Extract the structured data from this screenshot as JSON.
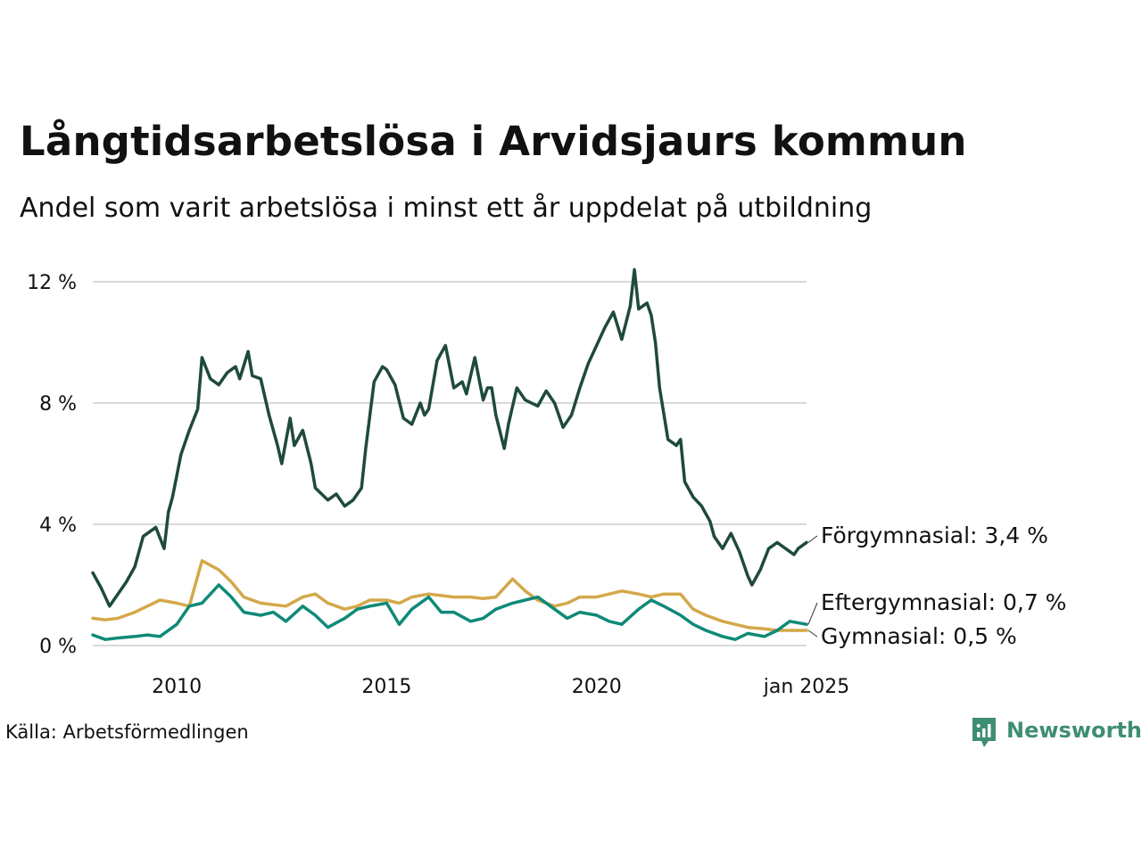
{
  "title": "Långtidsarbetslösa i Arvidsjaurs kommun",
  "subtitle": "Andel som varit arbetslösa i minst ett år uppdelat på utbildning",
  "source": "Källa: Arbetsförmedlingen",
  "brand": "Newsworthy",
  "colors": {
    "forgymnasial": "#1e4a3c",
    "eftergymnasial": "#0e8a78",
    "gymnasial": "#d4a84a",
    "grid": "#d9d9d9",
    "brand": "#3e8e73"
  },
  "chart_data": {
    "type": "line",
    "title": "Långtidsarbetslösa i Arvidsjaurs kommun",
    "ylabel": "",
    "xlabel": "",
    "ylim": [
      0,
      12.5
    ],
    "xlim": [
      2008.0,
      2025.0
    ],
    "y_ticks": [
      {
        "value": 0,
        "label": "0 %"
      },
      {
        "value": 4,
        "label": "4 %"
      },
      {
        "value": 8,
        "label": "8 %"
      },
      {
        "value": 12,
        "label": "12 %"
      }
    ],
    "x_ticks": [
      {
        "value": 2010,
        "label": "2010"
      },
      {
        "value": 2015,
        "label": "2015"
      },
      {
        "value": 2020,
        "label": "2020"
      },
      {
        "value": 2025,
        "label": "jan 2025"
      }
    ],
    "series": [
      {
        "name": "Förgymnasial",
        "end_label": "Förgymnasial: 3,4 %",
        "x": [
          2008.0,
          2008.2,
          2008.4,
          2008.6,
          2008.8,
          2009.0,
          2009.2,
          2009.5,
          2009.7,
          2009.8,
          2009.9,
          2010.1,
          2010.3,
          2010.5,
          2010.6,
          2010.8,
          2011.0,
          2011.2,
          2011.4,
          2011.5,
          2011.7,
          2011.8,
          2012.0,
          2012.2,
          2012.4,
          2012.5,
          2012.7,
          2012.8,
          2013.0,
          2013.2,
          2013.3,
          2013.6,
          2013.8,
          2014.0,
          2014.2,
          2014.4,
          2014.5,
          2014.7,
          2014.9,
          2015.0,
          2015.2,
          2015.4,
          2015.6,
          2015.8,
          2015.9,
          2016.0,
          2016.2,
          2016.4,
          2016.6,
          2016.8,
          2016.9,
          2017.1,
          2017.3,
          2017.4,
          2017.5,
          2017.6,
          2017.8,
          2017.9,
          2018.1,
          2018.3,
          2018.6,
          2018.8,
          2019.0,
          2019.2,
          2019.4,
          2019.6,
          2019.8,
          2020.0,
          2020.2,
          2020.4,
          2020.6,
          2020.8,
          2020.9,
          2021.0,
          2021.2,
          2021.3,
          2021.4,
          2021.5,
          2021.7,
          2021.9,
          2022.0,
          2022.1,
          2022.3,
          2022.5,
          2022.7,
          2022.8,
          2023.0,
          2023.2,
          2023.4,
          2023.6,
          2023.7,
          2023.9,
          2024.1,
          2024.3,
          2024.5,
          2024.7,
          2024.8,
          2025.0
        ],
        "values": [
          2.4,
          1.9,
          1.3,
          1.7,
          2.1,
          2.6,
          3.6,
          3.9,
          3.2,
          4.4,
          4.9,
          6.3,
          7.1,
          7.8,
          9.5,
          8.8,
          8.6,
          9.0,
          9.2,
          8.8,
          9.7,
          8.9,
          8.8,
          7.6,
          6.6,
          6.0,
          7.5,
          6.6,
          7.1,
          6.0,
          5.2,
          4.8,
          5.0,
          4.6,
          4.8,
          5.2,
          6.5,
          8.7,
          9.2,
          9.1,
          8.6,
          7.5,
          7.3,
          8.0,
          7.6,
          7.8,
          9.4,
          9.9,
          8.5,
          8.7,
          8.3,
          9.5,
          8.1,
          8.5,
          8.5,
          7.6,
          6.5,
          7.3,
          8.5,
          8.1,
          7.9,
          8.4,
          8.0,
          7.2,
          7.6,
          8.5,
          9.3,
          9.9,
          10.5,
          11.0,
          10.1,
          11.2,
          12.4,
          11.1,
          11.3,
          10.9,
          10.0,
          8.5,
          6.8,
          6.6,
          6.8,
          5.4,
          4.9,
          4.6,
          4.1,
          3.6,
          3.2,
          3.7,
          3.1,
          2.3,
          2.0,
          2.5,
          3.2,
          3.4,
          3.2,
          3.0,
          3.2,
          3.4
        ],
        "color_key": "forgymnasial"
      },
      {
        "name": "Eftergymnasial",
        "end_label": "Eftergymnasial: 0,7 %",
        "x": [
          2008.0,
          2008.3,
          2008.6,
          2009.0,
          2009.3,
          2009.6,
          2010.0,
          2010.3,
          2010.6,
          2011.0,
          2011.3,
          2011.6,
          2012.0,
          2012.3,
          2012.6,
          2013.0,
          2013.3,
          2013.6,
          2014.0,
          2014.3,
          2014.6,
          2015.0,
          2015.3,
          2015.6,
          2016.0,
          2016.3,
          2016.6,
          2017.0,
          2017.3,
          2017.6,
          2018.0,
          2018.3,
          2018.6,
          2019.0,
          2019.3,
          2019.6,
          2020.0,
          2020.3,
          2020.6,
          2021.0,
          2021.3,
          2021.6,
          2022.0,
          2022.3,
          2022.6,
          2023.0,
          2023.3,
          2023.6,
          2024.0,
          2024.3,
          2024.6,
          2025.0
        ],
        "values": [
          0.35,
          0.2,
          0.25,
          0.3,
          0.35,
          0.3,
          0.7,
          1.3,
          1.4,
          2.0,
          1.6,
          1.1,
          1.0,
          1.1,
          0.8,
          1.3,
          1.0,
          0.6,
          0.9,
          1.2,
          1.3,
          1.4,
          0.7,
          1.2,
          1.6,
          1.1,
          1.1,
          0.8,
          0.9,
          1.2,
          1.4,
          1.5,
          1.6,
          1.2,
          0.9,
          1.1,
          1.0,
          0.8,
          0.7,
          1.2,
          1.5,
          1.3,
          1.0,
          0.7,
          0.5,
          0.3,
          0.2,
          0.4,
          0.3,
          0.5,
          0.8,
          0.7
        ],
        "color_key": "eftergymnasial"
      },
      {
        "name": "Gymnasial",
        "end_label": "Gymnasial: 0,5 %",
        "x": [
          2008.0,
          2008.3,
          2008.6,
          2009.0,
          2009.3,
          2009.6,
          2010.0,
          2010.3,
          2010.6,
          2011.0,
          2011.3,
          2011.6,
          2012.0,
          2012.3,
          2012.6,
          2013.0,
          2013.3,
          2013.6,
          2014.0,
          2014.3,
          2014.6,
          2015.0,
          2015.3,
          2015.6,
          2016.0,
          2016.3,
          2016.6,
          2017.0,
          2017.3,
          2017.6,
          2018.0,
          2018.3,
          2018.6,
          2019.0,
          2019.3,
          2019.6,
          2020.0,
          2020.3,
          2020.6,
          2021.0,
          2021.3,
          2021.6,
          2022.0,
          2022.3,
          2022.6,
          2023.0,
          2023.3,
          2023.6,
          2024.0,
          2024.3,
          2024.6,
          2025.0
        ],
        "values": [
          0.9,
          0.85,
          0.9,
          1.1,
          1.3,
          1.5,
          1.4,
          1.3,
          2.8,
          2.5,
          2.1,
          1.6,
          1.4,
          1.35,
          1.3,
          1.6,
          1.7,
          1.4,
          1.2,
          1.3,
          1.5,
          1.5,
          1.4,
          1.6,
          1.7,
          1.65,
          1.6,
          1.6,
          1.55,
          1.6,
          2.2,
          1.8,
          1.5,
          1.3,
          1.4,
          1.6,
          1.6,
          1.7,
          1.8,
          1.7,
          1.6,
          1.7,
          1.7,
          1.2,
          1.0,
          0.8,
          0.7,
          0.6,
          0.55,
          0.5,
          0.5,
          0.5
        ],
        "color_key": "gymnasial"
      }
    ]
  }
}
